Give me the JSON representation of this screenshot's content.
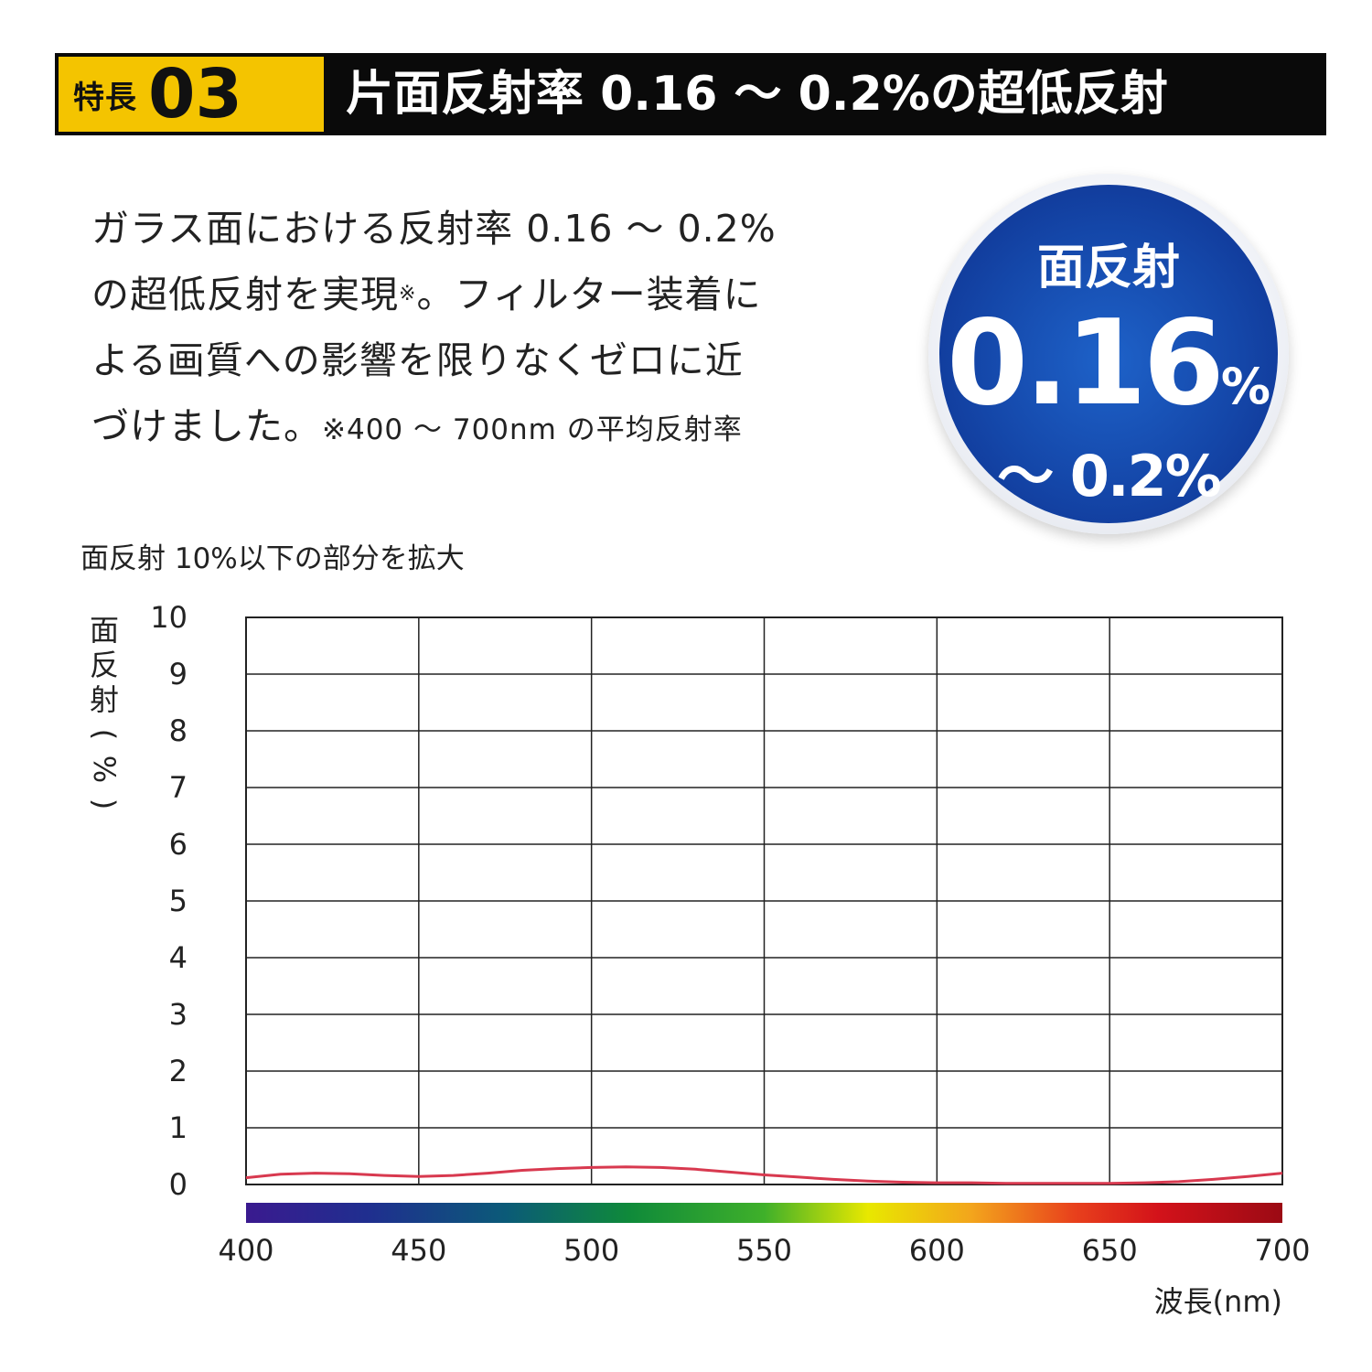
{
  "header": {
    "feature_label": "特長",
    "feature_number": "03",
    "title": "片面反射率 0.16 ～ 0.2%の超低反射"
  },
  "description": {
    "line1": "ガラス面における反射率 0.16 ～ 0.2%",
    "line2a": "の超低反射を実現",
    "note_mark": "※",
    "line2b": "。フィルター装着に",
    "line3": "よる画質への影響を限りなくゼロに近",
    "line4": "づけました。",
    "footnote": "※400 ～ 700nm の平均反射率"
  },
  "badge": {
    "title": "面反射",
    "value": "0.16",
    "unit": "%",
    "range": "～ 0.2%"
  },
  "chart_subtitle": "面反射 10%以下の部分を拡大",
  "colors": {
    "header_bg": "#0a0a0a",
    "tag_bg": "#f4c400",
    "badge_blue": "#1446a8",
    "line": "#d8394f",
    "grid": "#222222"
  },
  "chart_data": {
    "type": "line",
    "title": "",
    "xlabel": "波長(nm)",
    "ylabel": "面反射(%)",
    "xlim": [
      400,
      700
    ],
    "ylim": [
      0,
      10
    ],
    "x_ticks": [
      400,
      450,
      500,
      550,
      600,
      650,
      700
    ],
    "y_ticks": [
      0,
      1,
      2,
      3,
      4,
      5,
      6,
      7,
      8,
      9,
      10
    ],
    "grid": true,
    "spectrum_bar": true,
    "series": [
      {
        "x": [
          400,
          410,
          420,
          430,
          440,
          450,
          460,
          470,
          480,
          490,
          500,
          510,
          520,
          530,
          540,
          550,
          560,
          570,
          580,
          590,
          600,
          610,
          620,
          630,
          640,
          650,
          660,
          670,
          680,
          690,
          700
        ],
        "y": [
          0.12,
          0.18,
          0.2,
          0.19,
          0.16,
          0.14,
          0.16,
          0.2,
          0.25,
          0.28,
          0.3,
          0.31,
          0.3,
          0.27,
          0.22,
          0.17,
          0.13,
          0.09,
          0.06,
          0.04,
          0.03,
          0.03,
          0.02,
          0.02,
          0.02,
          0.02,
          0.03,
          0.05,
          0.09,
          0.14,
          0.2
        ]
      }
    ]
  }
}
